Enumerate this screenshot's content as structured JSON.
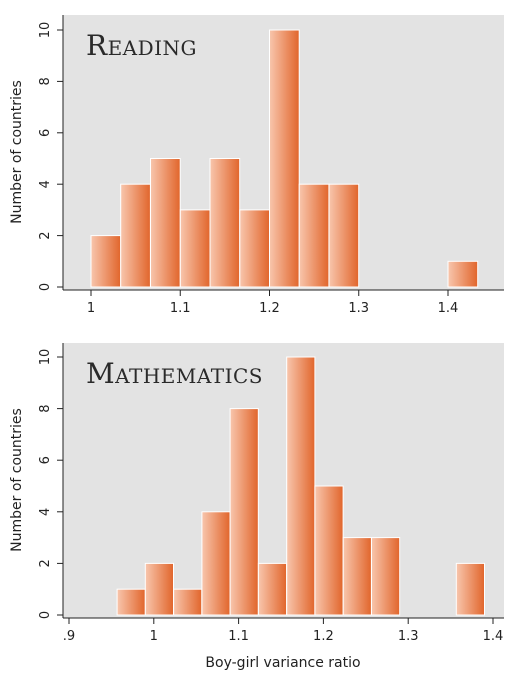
{
  "chart_data": [
    {
      "type": "bar",
      "title": "Reading",
      "ylabel": "Number of countries",
      "xlabel": "",
      "xlim": [
        0.98,
        1.46
      ],
      "ylim": [
        0,
        10.5
      ],
      "x_ticks": [
        "1",
        "1.1",
        "1.2",
        "1.3",
        "1.4"
      ],
      "y_ticks": [
        "0",
        "2",
        "4",
        "6",
        "8",
        "10"
      ],
      "bin_width": 0.0333,
      "bins": [
        {
          "x": 1.0,
          "count": 2
        },
        {
          "x": 1.0333,
          "count": 4
        },
        {
          "x": 1.0667,
          "count": 5
        },
        {
          "x": 1.1,
          "count": 3
        },
        {
          "x": 1.1333,
          "count": 5
        },
        {
          "x": 1.1667,
          "count": 3
        },
        {
          "x": 1.2,
          "count": 10
        },
        {
          "x": 1.2333,
          "count": 4
        },
        {
          "x": 1.2667,
          "count": 4
        },
        {
          "x": 1.3,
          "count": 0
        },
        {
          "x": 1.3333,
          "count": 0
        },
        {
          "x": 1.3667,
          "count": 0
        },
        {
          "x": 1.4,
          "count": 1
        }
      ],
      "grid": false
    },
    {
      "type": "bar",
      "title": "Mathematics",
      "ylabel": "Number of countries",
      "xlabel": "Boy-girl variance ratio",
      "xlim": [
        0.9,
        1.42
      ],
      "ylim": [
        0,
        10.5
      ],
      "x_ticks": [
        ".9",
        "1",
        "1.1",
        "1.2",
        "1.3",
        "1.4"
      ],
      "y_ticks": [
        "0",
        "2",
        "4",
        "6",
        "8",
        "10"
      ],
      "bin_width": 0.0333,
      "bins": [
        {
          "x": 0.9567,
          "count": 1
        },
        {
          "x": 0.99,
          "count": 2
        },
        {
          "x": 1.0233,
          "count": 1
        },
        {
          "x": 1.0567,
          "count": 4
        },
        {
          "x": 1.09,
          "count": 8
        },
        {
          "x": 1.1233,
          "count": 2
        },
        {
          "x": 1.1567,
          "count": 10
        },
        {
          "x": 1.19,
          "count": 5
        },
        {
          "x": 1.2233,
          "count": 3
        },
        {
          "x": 1.2567,
          "count": 3
        },
        {
          "x": 1.29,
          "count": 0
        },
        {
          "x": 1.3233,
          "count": 0
        },
        {
          "x": 1.3567,
          "count": 2
        }
      ],
      "grid": false
    }
  ],
  "colors": {
    "plot_bg": "#e3e3e3",
    "bar_light": "#f8c6ad",
    "bar_dark": "#e1652b",
    "axis": "#222222"
  }
}
